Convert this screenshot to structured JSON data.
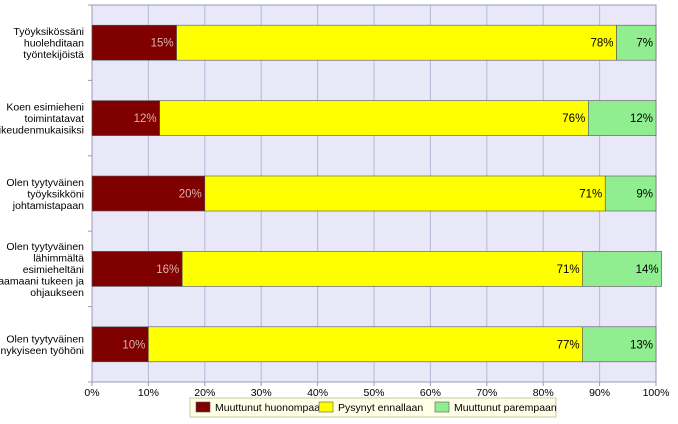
{
  "chart_data": {
    "type": "bar",
    "orientation": "horizontal",
    "stacked": true,
    "percent_stacked": true,
    "categories": [
      [
        "Työyksikössäni",
        "huolehditaan",
        "työntekijöistä"
      ],
      [
        "Koen esimieheni",
        "toimintatavat",
        "oikeudenmukaisiksi"
      ],
      [
        "Olen tyytyväinen",
        "työyksikköni",
        "johtamistapaan"
      ],
      [
        "Olen tyytyväinen",
        "lähimmältä",
        "esimieheltäni",
        "saamaani tukeen ja",
        "ohjaukseen"
      ],
      [
        "Olen tyytyväinen",
        "nykyiseen työhöni"
      ]
    ],
    "series": [
      {
        "name": "Muuttunut huonompaan",
        "color": "#800000",
        "label_color": "#d9b3b3",
        "values": [
          15,
          12,
          20,
          16,
          10
        ],
        "labels": [
          "15%",
          "12%",
          "20%",
          "16%",
          "10%"
        ]
      },
      {
        "name": "Pysynyt ennallaan",
        "color": "#ffff00",
        "label_color": "#000000",
        "values": [
          78,
          76,
          71,
          71,
          77
        ],
        "labels": [
          "78%",
          "76%",
          "71%",
          "71%",
          "77%"
        ]
      },
      {
        "name": "Muuttunut parempaan",
        "color": "#90ee90",
        "label_color": "#000000",
        "values": [
          7,
          12,
          9,
          14,
          13
        ],
        "labels": [
          "7%",
          "12%",
          "9%",
          "14%",
          "13%"
        ]
      }
    ],
    "x_ticks": [
      "0%",
      "10%",
      "20%",
      "30%",
      "40%",
      "50%",
      "60%",
      "70%",
      "80%",
      "90%",
      "100%"
    ],
    "xlim": [
      0,
      100
    ],
    "grid": true,
    "legend_position": "bottom",
    "plot_background": "#e8e8f8",
    "grid_color": "#b8b8d8"
  }
}
